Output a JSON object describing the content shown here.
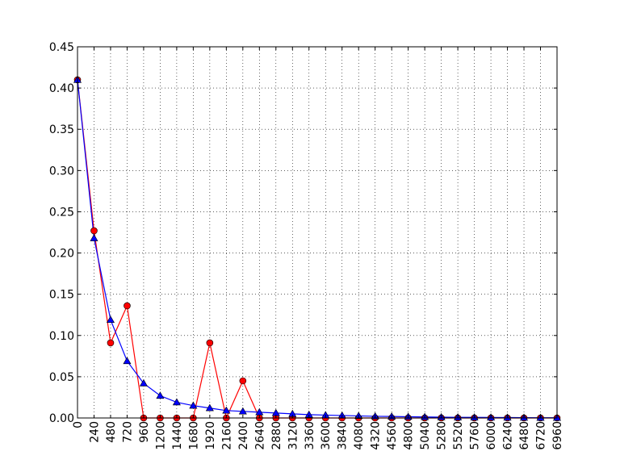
{
  "chart_data": {
    "type": "line",
    "title": "",
    "xlabel": "",
    "ylabel": "",
    "x": [
      0,
      240,
      480,
      720,
      960,
      1200,
      1440,
      1680,
      1920,
      2160,
      2400,
      2640,
      2880,
      3120,
      3360,
      3600,
      3840,
      4080,
      4320,
      4560,
      4800,
      5040,
      5280,
      5520,
      5760,
      6000,
      6240,
      6480,
      6720,
      6960
    ],
    "xlim": [
      0,
      6960
    ],
    "ylim": [
      0,
      0.45
    ],
    "xticks": [
      "0",
      "240",
      "480",
      "720",
      "960",
      "1200",
      "1440",
      "1680",
      "1920",
      "2160",
      "2400",
      "2640",
      "2880",
      "3120",
      "3360",
      "3600",
      "3840",
      "4080",
      "4320",
      "4560",
      "4800",
      "5040",
      "5280",
      "5520",
      "5760",
      "6000",
      "6240",
      "6480",
      "6720",
      "6960"
    ],
    "yticks": [
      "0.00",
      "0.05",
      "0.10",
      "0.15",
      "0.20",
      "0.25",
      "0.30",
      "0.35",
      "0.40",
      "0.45"
    ],
    "grid": true,
    "series": [
      {
        "color": "#ff0000",
        "marker": "circle",
        "values": [
          0.41,
          0.227,
          0.091,
          0.136,
          0.0,
          0.0,
          0.0,
          0.0,
          0.091,
          0.0,
          0.045,
          0.0,
          0.0,
          0.0,
          0.0,
          0.0,
          0.0,
          0.0,
          0.0,
          0.0,
          0.0,
          0.0,
          0.0,
          0.0,
          0.0,
          0.0,
          0.0,
          0.0,
          0.0,
          0.0
        ]
      },
      {
        "color": "#0000ff",
        "marker": "triangle",
        "values": [
          0.41,
          0.218,
          0.119,
          0.069,
          0.042,
          0.027,
          0.019,
          0.015,
          0.012,
          0.009,
          0.008,
          0.007,
          0.006,
          0.005,
          0.004,
          0.0035,
          0.003,
          0.0025,
          0.002,
          0.0018,
          0.0015,
          0.0012,
          0.001,
          0.0008,
          0.0007,
          0.0006,
          0.0005,
          0.0004,
          0.0003,
          0.0003
        ]
      }
    ]
  }
}
